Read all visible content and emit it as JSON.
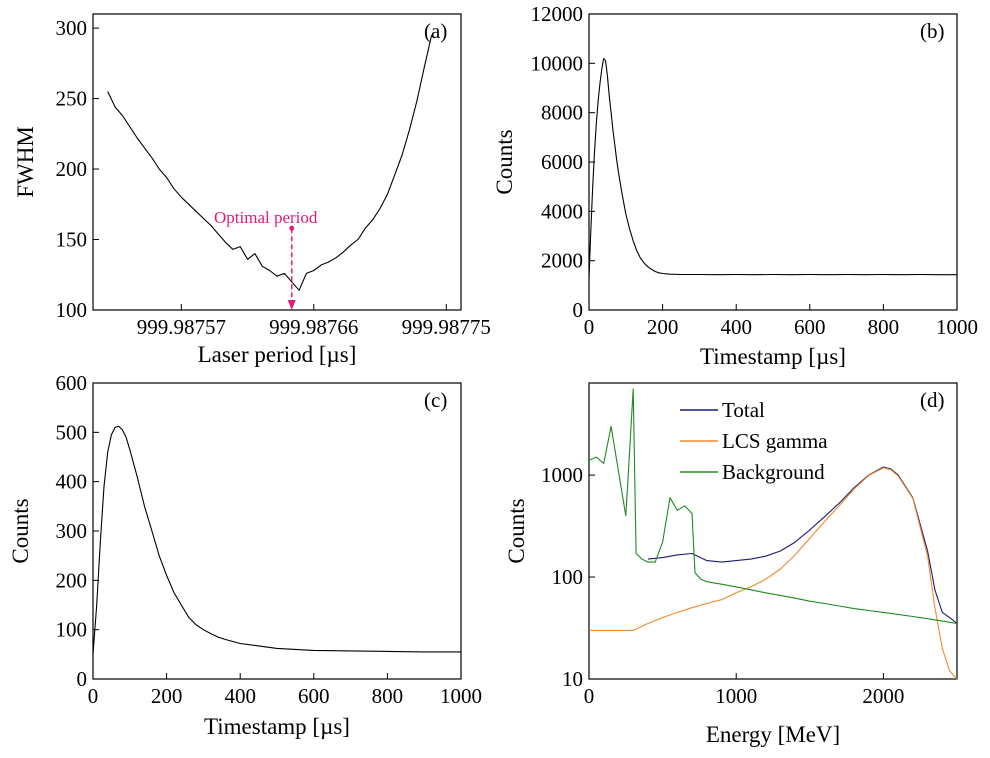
{
  "chart_data": [
    {
      "panel": "(a)",
      "type": "line",
      "xlabel": "Laser period [µs]",
      "ylabel": "FWHM",
      "xlim": [
        999.98751,
        999.98776
      ],
      "ylim": [
        100,
        310
      ],
      "xticks": [
        999.98757,
        999.98766,
        999.98775
      ],
      "xtick_labels": [
        "999.98757",
        "999.98766",
        "999.98775"
      ],
      "yticks": [
        100,
        150,
        200,
        250,
        300
      ],
      "series": [
        {
          "color": "#000000",
          "x": [
            999.98752,
            999.987525,
            999.98753,
            999.987535,
            999.98754,
            999.987545,
            999.98755,
            999.987555,
            999.98756,
            999.987565,
            999.98757,
            999.987575,
            999.98758,
            999.987585,
            999.98759,
            999.987595,
            999.9876,
            999.987605,
            999.98761,
            999.987615,
            999.98762,
            999.987625,
            999.98763,
            999.987635,
            999.98764,
            999.987645,
            999.98765,
            999.987655,
            999.98766,
            999.987665,
            999.98767,
            999.987675,
            999.98768,
            999.987685,
            999.98769,
            999.987695,
            999.9877,
            999.987705,
            999.98771,
            999.987715,
            999.98772,
            999.987725,
            999.98773,
            999.987735,
            999.98774
          ],
          "y": [
            255,
            244,
            238,
            230,
            222,
            215,
            208,
            200,
            194,
            186,
            180,
            175,
            170,
            165,
            160,
            154,
            148,
            143,
            145,
            136,
            140,
            131,
            128,
            124,
            126,
            120,
            114,
            126,
            128,
            132,
            134,
            137,
            141,
            146,
            150,
            158,
            164,
            172,
            182,
            196,
            210,
            228,
            248,
            272,
            295
          ]
        }
      ],
      "annotations": [
        {
          "text": "Optimal period",
          "color": "#e6197a",
          "x": 999.987645,
          "y": 158
        }
      ],
      "grid": false
    },
    {
      "panel": "(b)",
      "type": "line",
      "xlabel": "Timestamp [µs]",
      "ylabel": "Counts",
      "xlim": [
        0,
        1000
      ],
      "ylim": [
        0,
        12000
      ],
      "xticks": [
        0,
        200,
        400,
        600,
        800,
        1000
      ],
      "yticks": [
        0,
        2000,
        4000,
        6000,
        8000,
        10000,
        12000
      ],
      "series": [
        {
          "color": "#000000",
          "x": [
            0,
            5,
            10,
            15,
            20,
            25,
            30,
            35,
            40,
            45,
            50,
            55,
            60,
            65,
            70,
            75,
            80,
            90,
            100,
            110,
            120,
            130,
            140,
            150,
            160,
            170,
            180,
            190,
            200,
            220,
            250,
            300,
            350,
            400,
            450,
            500,
            550,
            600,
            650,
            700,
            750,
            800,
            850,
            900,
            950,
            1000
          ],
          "y": [
            1300,
            3200,
            5000,
            6400,
            7600,
            8500,
            9200,
            9800,
            10200,
            10100,
            9500,
            8700,
            8000,
            7300,
            6700,
            6100,
            5600,
            4700,
            3900,
            3300,
            2800,
            2400,
            2100,
            1900,
            1750,
            1650,
            1560,
            1510,
            1480,
            1450,
            1440,
            1440,
            1430,
            1440,
            1430,
            1440,
            1430,
            1440,
            1430,
            1440,
            1430,
            1440,
            1430,
            1440,
            1430,
            1430
          ]
        }
      ],
      "grid": false
    },
    {
      "panel": "(c)",
      "type": "line",
      "xlabel": "Timestamp [µs]",
      "ylabel": "Counts",
      "xlim": [
        0,
        1000
      ],
      "ylim": [
        0,
        600
      ],
      "xticks": [
        0,
        200,
        400,
        600,
        800,
        1000
      ],
      "yticks": [
        0,
        100,
        200,
        300,
        400,
        500,
        600
      ],
      "series": [
        {
          "color": "#000000",
          "x": [
            0,
            10,
            20,
            30,
            40,
            50,
            60,
            70,
            80,
            90,
            100,
            120,
            140,
            160,
            180,
            200,
            220,
            240,
            260,
            280,
            300,
            320,
            340,
            360,
            380,
            400,
            450,
            500,
            550,
            600,
            700,
            800,
            900,
            1000
          ],
          "y": [
            50,
            150,
            280,
            390,
            460,
            495,
            510,
            512,
            505,
            490,
            465,
            410,
            350,
            300,
            250,
            210,
            175,
            150,
            125,
            110,
            100,
            92,
            85,
            80,
            76,
            72,
            67,
            62,
            60,
            58,
            57,
            56,
            55,
            55
          ]
        }
      ],
      "grid": false
    },
    {
      "panel": "(d)",
      "type": "line",
      "xlabel": "Energy [MeV]",
      "ylabel": "Counts",
      "xlim": [
        0,
        2500
      ],
      "ylim": [
        10,
        8000
      ],
      "yscale": "log",
      "xticks": [
        0,
        1000,
        2000
      ],
      "yticks": [
        10,
        100,
        1000
      ],
      "legend_position": "top-center",
      "series": [
        {
          "name": "Total",
          "color": "#1c1c78",
          "x": [
            400,
            500,
            600,
            700,
            800,
            900,
            1000,
            1100,
            1200,
            1300,
            1400,
            1500,
            1600,
            1700,
            1800,
            1900,
            2000,
            2050,
            2100,
            2200,
            2300,
            2350,
            2400,
            2450,
            2500
          ],
          "y": [
            150,
            155,
            165,
            170,
            145,
            140,
            145,
            150,
            160,
            180,
            220,
            290,
            390,
            530,
            750,
            1000,
            1200,
            1150,
            1000,
            600,
            180,
            75,
            45,
            40,
            35
          ]
        },
        {
          "name": "LCS gamma",
          "color": "#f08a2c",
          "x": [
            0,
            100,
            200,
            300,
            400,
            500,
            600,
            700,
            800,
            900,
            1000,
            1100,
            1200,
            1300,
            1400,
            1500,
            1600,
            1700,
            1800,
            1900,
            2000,
            2050,
            2100,
            2200,
            2300,
            2350,
            2400,
            2450,
            2500
          ],
          "y": [
            30,
            30,
            30,
            30,
            35,
            40,
            45,
            50,
            55,
            60,
            70,
            80,
            95,
            120,
            165,
            240,
            350,
            500,
            730,
            990,
            1180,
            1130,
            980,
            590,
            160,
            50,
            20,
            12,
            10
          ]
        },
        {
          "name": "Background",
          "color": "#1f8a1f",
          "x": [
            0,
            50,
            100,
            150,
            200,
            250,
            270,
            300,
            320,
            360,
            400,
            450,
            500,
            550,
            600,
            650,
            700,
            720,
            760,
            800,
            900,
            1000,
            1100,
            1200,
            1300,
            1400,
            1500,
            1600,
            1700,
            1800,
            1900,
            2000,
            2100,
            2200,
            2300,
            2400,
            2500
          ],
          "y": [
            1400,
            1500,
            1300,
            3000,
            1100,
            400,
            1200,
            7000,
            170,
            150,
            140,
            140,
            220,
            600,
            450,
            500,
            420,
            110,
            95,
            90,
            85,
            80,
            75,
            70,
            66,
            62,
            58,
            55,
            52,
            49,
            47,
            45,
            43,
            41,
            39,
            37,
            35
          ]
        }
      ],
      "grid": false
    }
  ]
}
